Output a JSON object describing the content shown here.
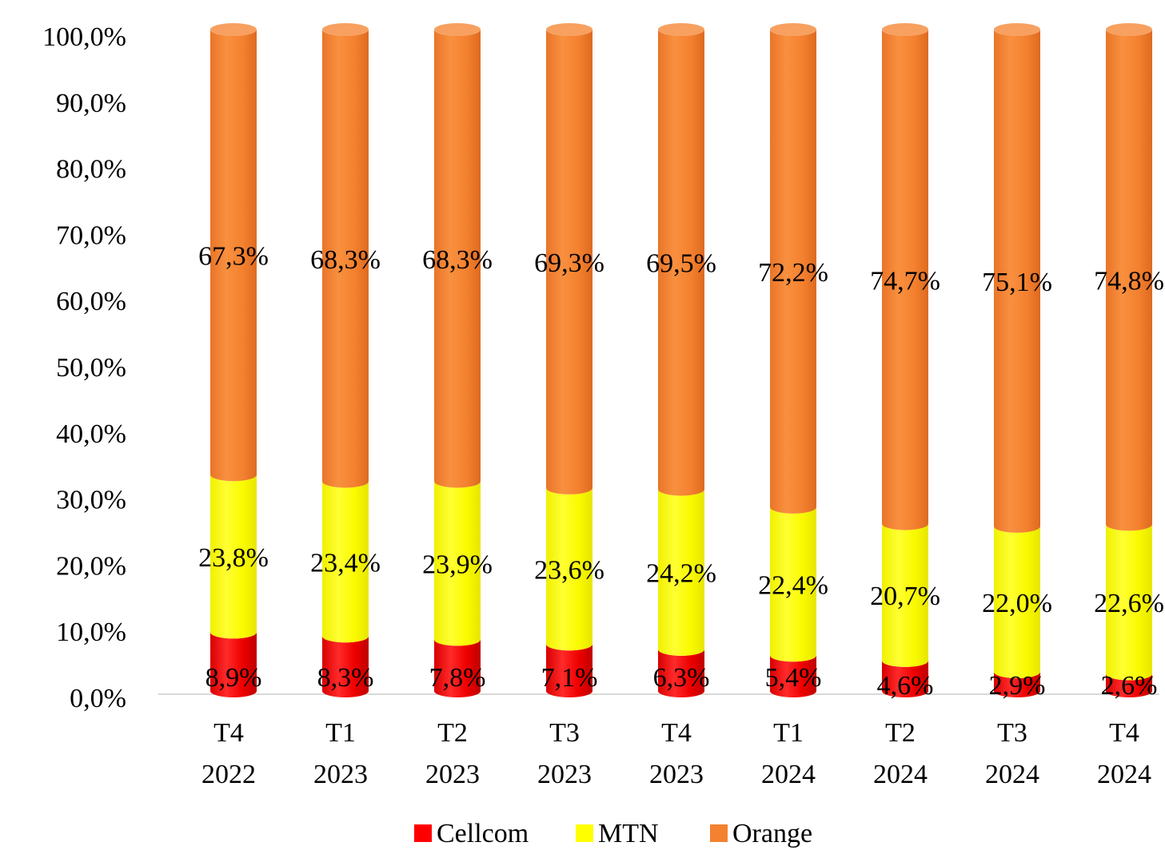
{
  "chart_data": {
    "type": "bar",
    "stacked": true,
    "style": "3d-cylinder",
    "categories": [
      [
        "T4",
        "2022"
      ],
      [
        "T1",
        "2023"
      ],
      [
        "T2",
        "2023"
      ],
      [
        "T3",
        "2023"
      ],
      [
        "T4",
        "2023"
      ],
      [
        "T1",
        "2024"
      ],
      [
        "T2",
        "2024"
      ],
      [
        "T3",
        "2024"
      ],
      [
        "T4",
        "2024"
      ]
    ],
    "series": [
      {
        "name": "Cellcom",
        "color": "#ff0000",
        "values": [
          8.9,
          8.3,
          7.8,
          7.1,
          6.3,
          5.4,
          4.6,
          2.9,
          2.6
        ],
        "labels": [
          "8,9%",
          "8,3%",
          "7,8%",
          "7,1%",
          "6,3%",
          "5,4%",
          "4,6%",
          "2,9%",
          "2,6%"
        ]
      },
      {
        "name": "MTN",
        "color": "#ffff00",
        "values": [
          23.8,
          23.4,
          23.9,
          23.6,
          24.2,
          22.4,
          20.7,
          22.0,
          22.6
        ],
        "labels": [
          "23,8%",
          "23,4%",
          "23,9%",
          "23,6%",
          "24,2%",
          "22,4%",
          "20,7%",
          "22,0%",
          "22,6%"
        ]
      },
      {
        "name": "Orange",
        "color": "#f4812f",
        "values": [
          67.3,
          68.3,
          68.3,
          69.3,
          69.5,
          72.2,
          74.7,
          75.1,
          74.8
        ],
        "labels": [
          "67,3%",
          "68,3%",
          "68,3%",
          "69,3%",
          "69,5%",
          "72,2%",
          "74,7%",
          "75,1%",
          "74,8%"
        ]
      }
    ],
    "yticks": [
      "0,0%",
      "10,0%",
      "20,0%",
      "30,0%",
      "40,0%",
      "50,0%",
      "60,0%",
      "70,0%",
      "80,0%",
      "90,0%",
      "100,0%"
    ],
    "ylim": [
      0,
      100
    ],
    "grid": false,
    "legend": "bottom",
    "title": "",
    "xlabel": "",
    "ylabel": ""
  }
}
